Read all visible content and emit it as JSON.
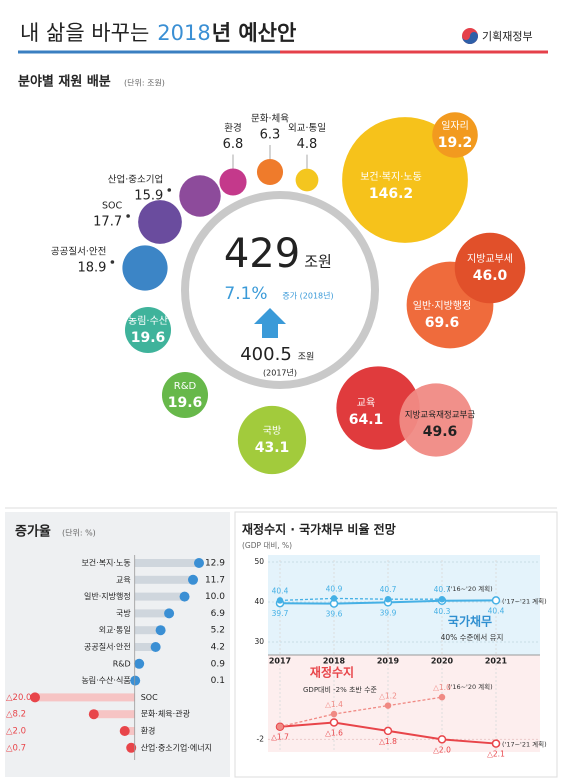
{
  "header": {
    "title_pre": "내 삶을 바꾸는",
    "title_year": "2018",
    "title_post": "년 예산안",
    "logo": "기획재정부"
  },
  "chart_data": [
    {
      "type": "bubble",
      "title": "분야별 재원 배분",
      "subtitle": "(단위: 조원)",
      "center": {
        "total": 429,
        "unit": "조원",
        "growth": 7.1,
        "growth_label": "7.1%",
        "growth_note": "증가 (2018년)",
        "previous": 400.5,
        "previous_unit": "조원",
        "previous_note": "(2017년)"
      },
      "categories": [
        "보건·복지·노동",
        "일자리",
        "일반·지방행정",
        "지방교부세",
        "교육",
        "지방교육재정교부금",
        "국방",
        "R&D",
        "농림·수산",
        "공공질서·안전",
        "SOC",
        "산업·중소기업",
        "환경",
        "문화·체육",
        "외교·통일"
      ],
      "values": [
        146.2,
        19.2,
        69.6,
        46.0,
        64.1,
        49.6,
        43.1,
        19.6,
        19.6,
        18.9,
        17.7,
        15.9,
        6.8,
        6.3,
        4.8
      ],
      "value_labels": [
        "146.2",
        "19.2",
        "69.6",
        "46.0",
        "64.1",
        "49.6",
        "43.1",
        "19.6",
        "19.6",
        "18.9",
        "17.7",
        "15.9",
        "6.8",
        "6.3",
        "4.8"
      ],
      "colors": [
        "#f6c21b",
        "#f29a1f",
        "#ef6b3c",
        "#e1502a",
        "#e03b3d",
        "#f08a84",
        "#a2cb3c",
        "#67b84a",
        "#3fb39b",
        "#3c85c6",
        "#6a4c9e",
        "#8d4b9b",
        "#c4398b",
        "#ef7b2b",
        "#f4c61f"
      ]
    },
    {
      "type": "bar",
      "orientation": "horizontal",
      "title": "증가율",
      "subtitle": "(단위: %)",
      "categories": [
        "보건·복지·노동",
        "교육",
        "일반·지방행정",
        "국방",
        "외교·통일",
        "공공질서·안전",
        "R&D",
        "농림·수산·식품",
        "SOC",
        "문화·체육·관광",
        "환경",
        "산업·중소기업·에너지"
      ],
      "values": [
        12.9,
        11.7,
        10.0,
        6.9,
        5.2,
        4.2,
        0.9,
        0.1,
        -20.0,
        -8.2,
        -2.0,
        -0.7
      ],
      "value_labels": [
        "12.9",
        "11.7",
        "10.0",
        "6.9",
        "5.2",
        "4.2",
        "0.9",
        "0.1",
        "△20.0",
        "△8.2",
        "△2.0",
        "△0.7"
      ],
      "positive_color": "#3a8fd4",
      "negative_color": "#e8454a",
      "xlim": [
        -20,
        13
      ]
    },
    {
      "type": "line",
      "title": "재정수지 · 국가채무 비율 전망",
      "subtitle": "(GDP 대비, %)",
      "categories": [
        "2017",
        "2018",
        "2019",
        "2020",
        "2021"
      ],
      "series": [
        {
          "name": "('17~'21 계획)",
          "color": "#45b0e5",
          "dashed": false,
          "values": [
            39.7,
            39.6,
            39.9,
            40.3,
            40.4
          ]
        },
        {
          "name": "('16~'20 계획)",
          "color": "#45b0e5",
          "dashed": true,
          "values": [
            40.4,
            40.9,
            40.7,
            40.7,
            null
          ]
        },
        {
          "name": "('17~'21 계획)",
          "color": "#e8454a",
          "dashed": false,
          "axis": "y2",
          "values": [
            -1.7,
            -1.6,
            -1.8,
            -2.0,
            -2.1
          ],
          "value_labels": [
            "△1.7",
            "△1.6",
            "△1.8",
            "△2.0",
            "△2.1"
          ]
        },
        {
          "name": "('16~'20 계획)",
          "color": "#f08a84",
          "dashed": true,
          "axis": "y2",
          "values": [
            -1.7,
            -1.4,
            -1.2,
            -1.0,
            null
          ],
          "value_labels": [
            null,
            "△1.4",
            "△1.2",
            "△1.0",
            null
          ]
        }
      ],
      "annotations": [
        "국가채무",
        "40% 수준에서 유지",
        "재정수지",
        "GDP대비 -2% 초반 수준"
      ],
      "ylim": [
        30,
        50
      ],
      "yticks": [
        30,
        40,
        50
      ],
      "y2lim": [
        -2.3,
        0
      ],
      "y2ticks": [
        -2
      ],
      "grid": true
    }
  ]
}
